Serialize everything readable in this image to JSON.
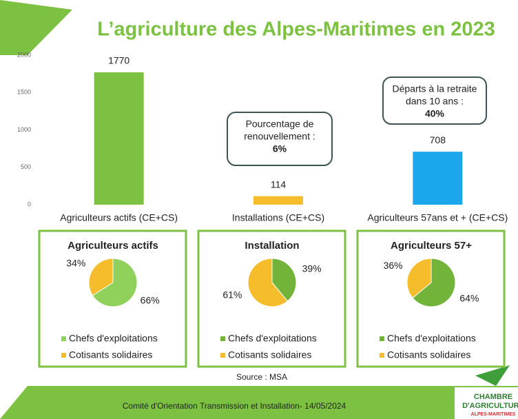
{
  "title": "L’agriculture des Alpes-Maritimes en 2023",
  "source": "Source : MSA",
  "footer": "Comité d'Orientation Transmission et Installation- 14/05/2024",
  "logo": [
    "CHAMBRE",
    "D'AGRICULTURE",
    "ALPES-MARITIMES"
  ],
  "chart_data": [
    {
      "type": "bar",
      "categories": [
        "Agriculteurs actifs (CE+CS)",
        "Installations (CE+CS)",
        "Agriculteurs 57ans et + (CE+CS)"
      ],
      "values": [
        1770,
        114,
        708
      ],
      "colors": [
        "#7dc142",
        "#f5bd2c",
        "#1aa7ec"
      ],
      "ylim": [
        0,
        2000
      ],
      "yticks": [
        0,
        500,
        1000,
        1500,
        2000
      ],
      "grid": false,
      "annotations": [
        {
          "lines": [
            "Pourcentage de",
            "renouvellement :"
          ],
          "emphasis": "6%"
        },
        {
          "lines": [
            "Départs à la retraite",
            "dans 10 ans :"
          ],
          "emphasis": "40%"
        }
      ]
    },
    {
      "type": "pie",
      "title": "Agriculteurs actifs",
      "labels": [
        "Chefs d'exploitations",
        "Cotisants solidaires"
      ],
      "values": [
        66,
        34
      ],
      "value_labels": [
        "66%",
        "34%"
      ],
      "colors": [
        "#8fd15a",
        "#f5bd2c"
      ]
    },
    {
      "type": "pie",
      "title": "Installation",
      "labels": [
        "Chefs d'exploitations",
        "Cotisants solidaires"
      ],
      "values": [
        39,
        61
      ],
      "value_labels": [
        "39%",
        "61%"
      ],
      "colors": [
        "#72b43a",
        "#f5bd2c"
      ]
    },
    {
      "type": "pie",
      "title": "Agriculteurs 57+",
      "labels": [
        "Chefs d'exploitations",
        "Cotisants solidaires"
      ],
      "values": [
        64,
        36
      ],
      "value_labels": [
        "64%",
        "36%"
      ],
      "colors": [
        "#72b43a",
        "#f5bd2c"
      ]
    }
  ]
}
